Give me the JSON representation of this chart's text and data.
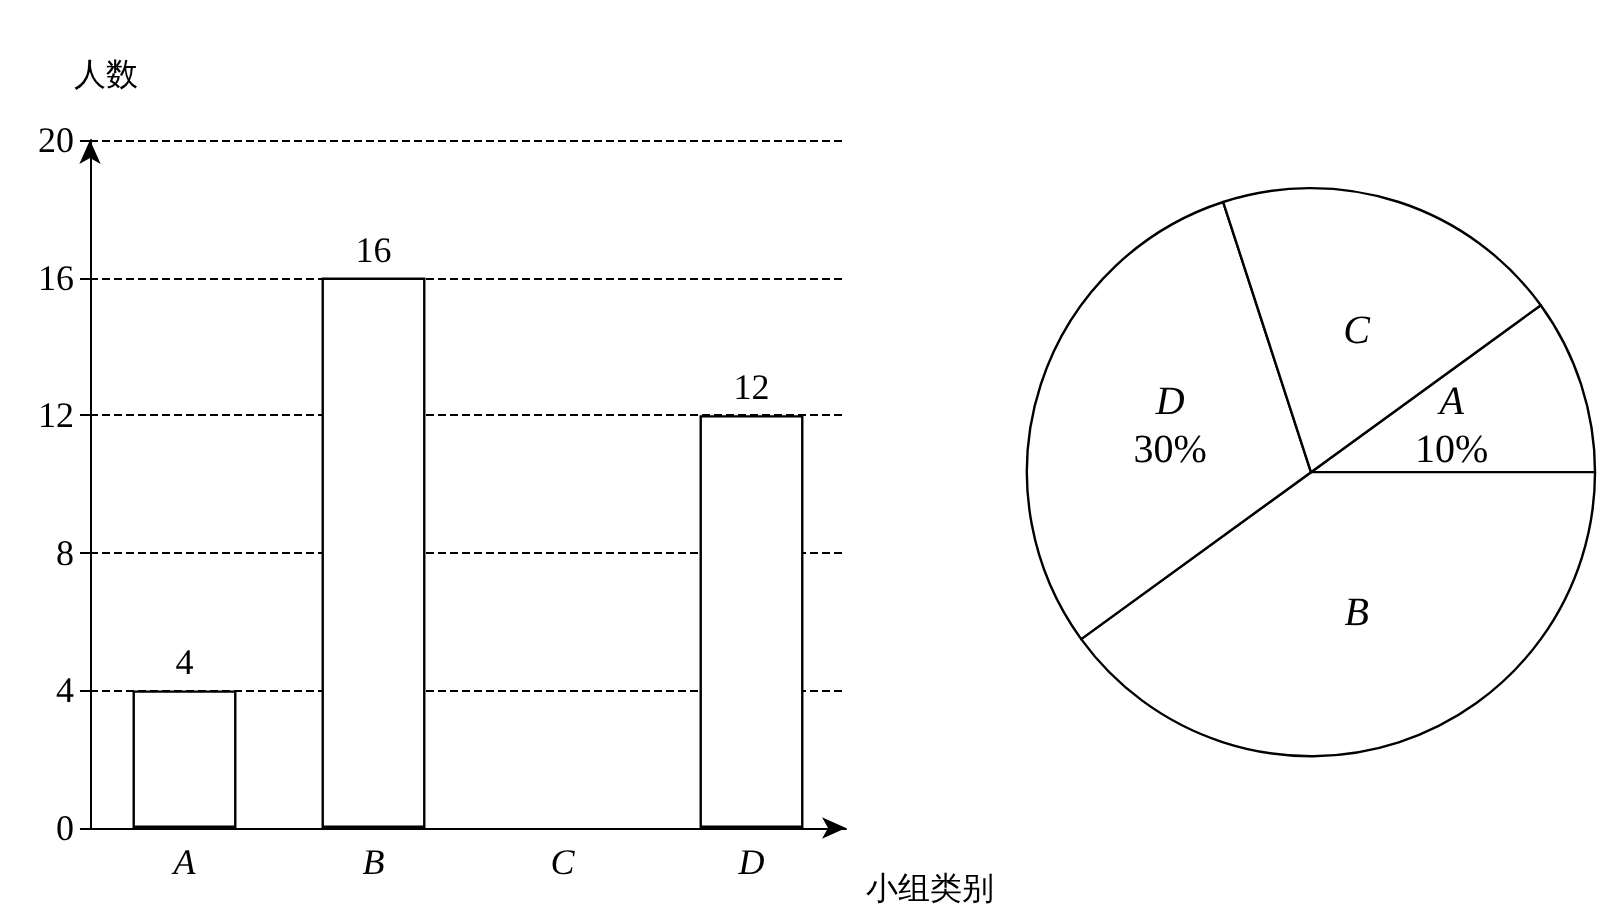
{
  "chart_data": [
    {
      "type": "bar",
      "xlabel": "小组类别",
      "ylabel": "人数",
      "categories": [
        "A",
        "B",
        "C",
        "D"
      ],
      "values": [
        4,
        16,
        null,
        12
      ],
      "color": "#ffffff",
      "ylim": [
        0,
        20
      ],
      "yticks": [
        0,
        4,
        8,
        12,
        16,
        20
      ],
      "grid": "y",
      "data_labels": true
    },
    {
      "type": "pie",
      "categories": [
        "A",
        "B",
        "D",
        "C"
      ],
      "values": [
        10,
        40,
        30,
        20
      ],
      "colors": [
        "#ffffff",
        "#ffffff",
        "#ffffff",
        "#ffffff"
      ],
      "value_labels": [
        "10%",
        null,
        "30%",
        null
      ]
    }
  ]
}
